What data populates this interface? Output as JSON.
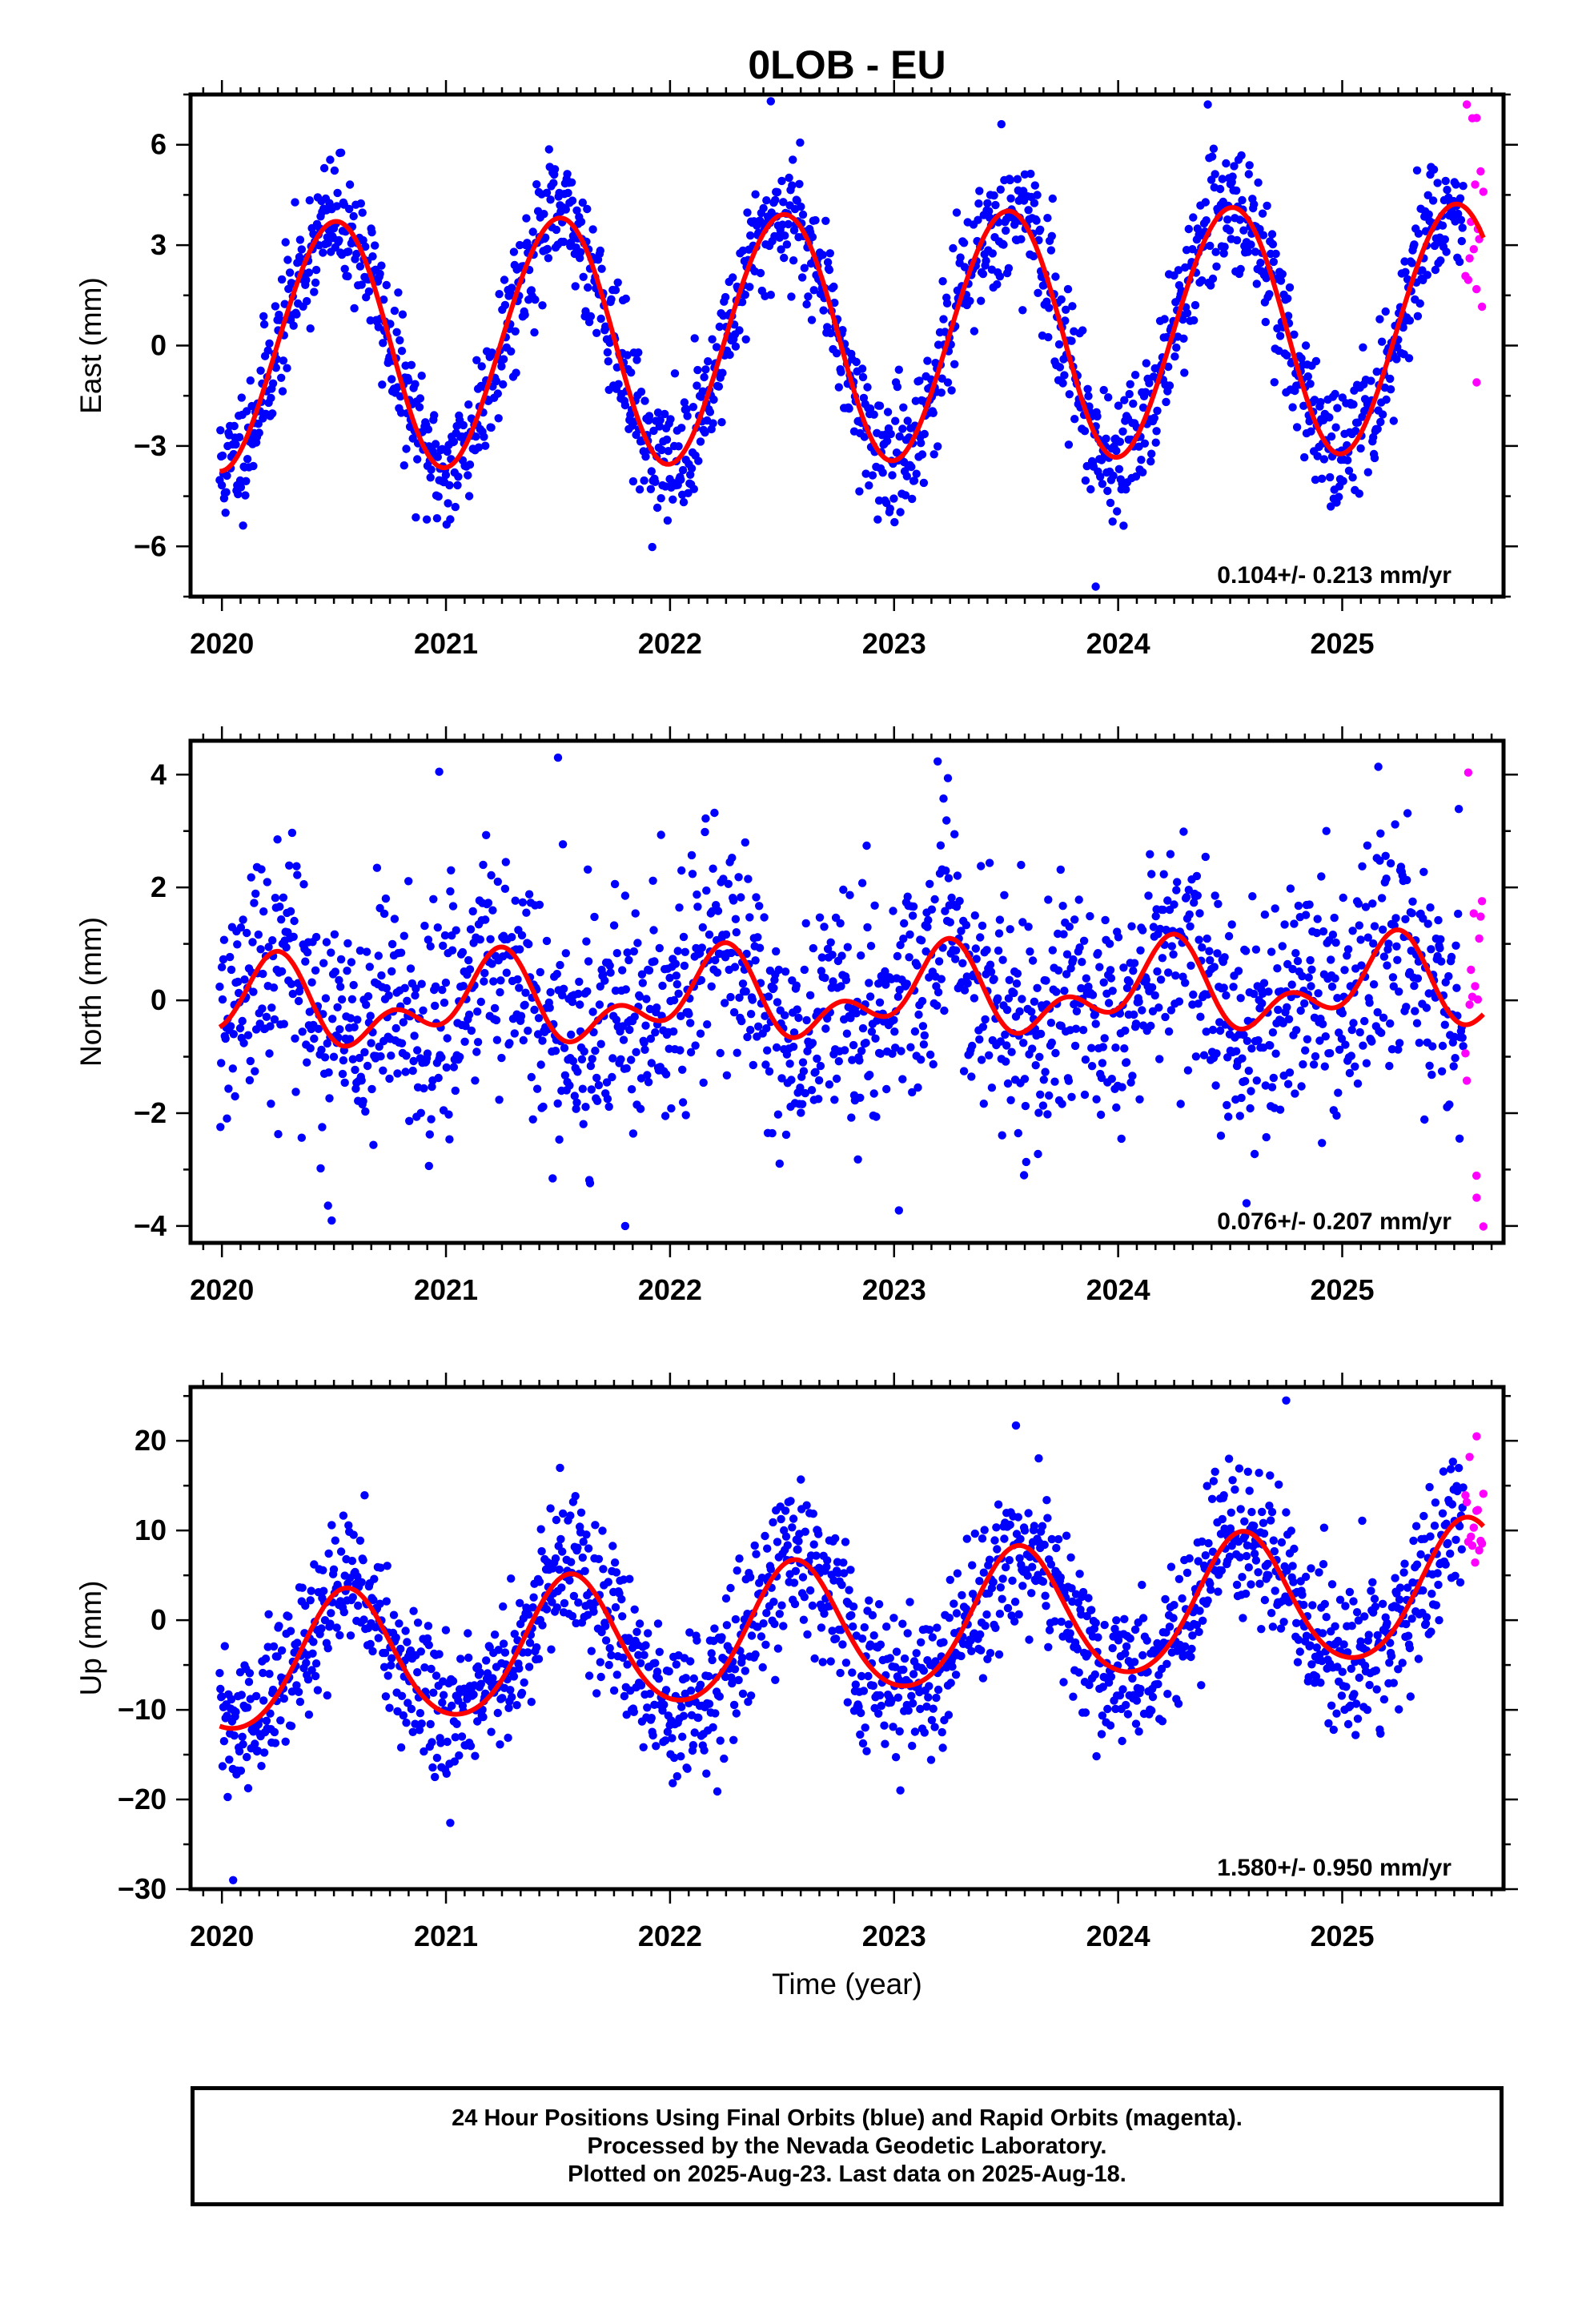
{
  "title": "0LOB - EU",
  "caption": {
    "line1": "24 Hour Positions Using Final Orbits (blue) and Rapid Orbits (magenta).",
    "line2": "Processed by the Nevada Geodetic Laboratory.",
    "line3": "Plotted on 2025-Aug-23. Last data on 2025-Aug-18."
  },
  "colors": {
    "final": "#0000ff",
    "rapid": "#ff00ff",
    "fit": "#ff0000",
    "axis": "#000000"
  },
  "chart_data": [
    {
      "type": "scatter",
      "ylabel": "East (mm)",
      "xlabel": "",
      "xlim": [
        2019.86,
        2025.72
      ],
      "ylim": [
        -7.5,
        7.5
      ],
      "xticks": [
        2020,
        2021,
        2022,
        2023,
        2024,
        2025
      ],
      "xtick_labels": [
        "2020",
        "2021",
        "2022",
        "2023",
        "2024",
        "2025"
      ],
      "yticks": [
        -6,
        -3,
        0,
        3,
        6
      ],
      "ytick_labels": [
        "−6",
        "−3",
        "0",
        "3",
        "6"
      ],
      "rate": "0.104+/- 0.213 mm/yr",
      "model": {
        "offset": 0.0,
        "trend": 0.104,
        "t0": 2020.0,
        "annual": [
          0.0,
          -3.7
        ],
        "semiannual": [
          0.1,
          -0.05
        ]
      },
      "series": [
        {
          "role": "final",
          "x_start": 2019.99,
          "x_end": 2025.54,
          "n": 1700,
          "noise": 0.95,
          "seed": 11
        },
        {
          "role": "rapid",
          "x_start": 2025.55,
          "x_end": 2025.63,
          "n": 14,
          "noise": 1.8,
          "seed": 12
        },
        {
          "role": "fit",
          "x_start": 2019.99,
          "x_end": 2025.63
        }
      ],
      "notable_points": [
        {
          "x": 2022.45,
          "y": 7.3
        },
        {
          "x": 2023.9,
          "y": -7.2
        },
        {
          "x": 2025.6,
          "y": 6.8
        },
        {
          "x": 2025.6,
          "y": -1.1
        }
      ]
    },
    {
      "type": "scatter",
      "ylabel": "North (mm)",
      "xlabel": "",
      "xlim": [
        2019.86,
        2025.72
      ],
      "ylim": [
        -4.3,
        4.6
      ],
      "xticks": [
        2020,
        2021,
        2022,
        2023,
        2024,
        2025
      ],
      "xtick_labels": [
        "2020",
        "2021",
        "2022",
        "2023",
        "2024",
        "2025"
      ],
      "yticks": [
        -4,
        -2,
        0,
        2,
        4
      ],
      "ytick_labels": [
        "−4",
        "−2",
        "0",
        "2",
        "4"
      ],
      "rate": "0.076+/- 0.207 mm/yr",
      "model": {
        "offset": -0.15,
        "trend": 0.076,
        "t0": 2020.0,
        "annual": [
          0.55,
          0.15
        ],
        "semiannual": [
          -0.05,
          -0.45
        ]
      },
      "series": [
        {
          "role": "final",
          "x_start": 2019.99,
          "x_end": 2025.54,
          "n": 1700,
          "noise": 1.05,
          "seed": 21
        },
        {
          "role": "rapid",
          "x_start": 2025.55,
          "x_end": 2025.63,
          "n": 14,
          "noise": 2.0,
          "seed": 22
        },
        {
          "role": "fit",
          "x_start": 2019.99,
          "x_end": 2025.63
        }
      ],
      "notable_points": [
        {
          "x": 2021.5,
          "y": 4.3
        },
        {
          "x": 2020.97,
          "y": 4.05
        },
        {
          "x": 2021.8,
          "y": -4.0
        },
        {
          "x": 2025.6,
          "y": -3.5
        }
      ]
    },
    {
      "type": "scatter",
      "ylabel": "Up (mm)",
      "xlabel": "Time (year)",
      "xlim": [
        2019.86,
        2025.72
      ],
      "ylim": [
        -30,
        26
      ],
      "xticks": [
        2020,
        2021,
        2022,
        2023,
        2024,
        2025
      ],
      "xtick_labels": [
        "2020",
        "2021",
        "2022",
        "2023",
        "2024",
        "2025"
      ],
      "yticks": [
        -30,
        -20,
        -10,
        0,
        10,
        20
      ],
      "ytick_labels": [
        "−30",
        "−20",
        "−10",
        "0",
        "10",
        "20"
      ],
      "rate": "1.580+/- 0.950 mm/yr",
      "model": {
        "offset": -5.5,
        "trend": 1.58,
        "t0": 2020.0,
        "annual": [
          -2.5,
          -7.0
        ],
        "semiannual": [
          0.5,
          0.6
        ]
      },
      "series": [
        {
          "role": "final",
          "x_start": 2019.99,
          "x_end": 2025.54,
          "n": 1700,
          "noise": 4.2,
          "seed": 31
        },
        {
          "role": "rapid",
          "x_start": 2025.55,
          "x_end": 2025.63,
          "n": 14,
          "noise": 3.5,
          "seed": 32
        },
        {
          "role": "fit",
          "x_start": 2019.99,
          "x_end": 2025.63
        }
      ],
      "notable_points": [
        {
          "x": 2020.05,
          "y": -29
        },
        {
          "x": 2024.75,
          "y": 24.5
        },
        {
          "x": 2025.6,
          "y": 20.5
        }
      ]
    }
  ]
}
